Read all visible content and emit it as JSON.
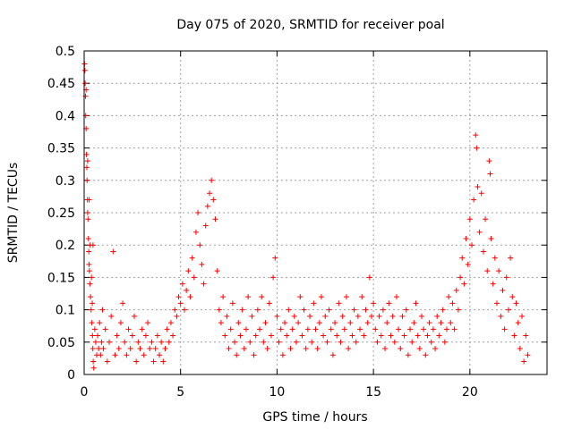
{
  "chart_data": {
    "type": "scatter",
    "title": "Day 075 of 2020, SRMTID for receiver poal",
    "xlabel": "GPS time / hours",
    "ylabel": "SRMTID / TECUs",
    "xlim": [
      0,
      24
    ],
    "ylim": [
      0,
      0.5
    ],
    "xticks": [
      0,
      5,
      10,
      15,
      20
    ],
    "xtick_labels": [
      "0",
      "5",
      "10",
      "15",
      "20"
    ],
    "yticks": [
      0,
      0.05,
      0.1,
      0.15,
      0.2,
      0.25,
      0.3,
      0.35,
      0.4,
      0.45,
      0.5
    ],
    "ytick_labels": [
      "0",
      "0.05",
      "0.1",
      "0.15",
      "0.2",
      "0.25",
      "0.3",
      "0.35",
      "0.4",
      "0.45",
      "0.5"
    ],
    "grid": true,
    "marker": "+",
    "color": "#ff0000",
    "series": [
      {
        "name": "SRMTID",
        "points": [
          [
            0.02,
            0.48
          ],
          [
            0.04,
            0.47
          ],
          [
            0.05,
            0.45
          ],
          [
            0.07,
            0.43
          ],
          [
            0.08,
            0.4
          ],
          [
            0.1,
            0.38
          ],
          [
            0.12,
            0.34
          ],
          [
            0.14,
            0.32
          ],
          [
            0.15,
            0.3
          ],
          [
            0.17,
            0.27
          ],
          [
            0.18,
            0.25
          ],
          [
            0.2,
            0.24
          ],
          [
            0.22,
            0.21
          ],
          [
            0.24,
            0.19
          ],
          [
            0.25,
            0.17
          ],
          [
            0.27,
            0.16
          ],
          [
            0.3,
            0.14
          ],
          [
            0.33,
            0.12
          ],
          [
            0.36,
            0.1
          ],
          [
            0.4,
            0.08
          ],
          [
            0.43,
            0.06
          ],
          [
            0.45,
            0.04
          ],
          [
            0.47,
            0.02
          ],
          [
            0.5,
            0.01
          ],
          [
            0.1,
            0.44
          ],
          [
            0.18,
            0.33
          ],
          [
            0.26,
            0.27
          ],
          [
            0.31,
            0.2
          ],
          [
            0.38,
            0.15
          ],
          [
            0.42,
            0.11
          ],
          [
            0.46,
            0.2
          ],
          [
            0.55,
            0.07
          ],
          [
            0.6,
            0.05
          ],
          [
            0.65,
            0.03
          ],
          [
            0.7,
            0.06
          ],
          [
            0.75,
            0.04
          ],
          [
            0.8,
            0.08
          ],
          [
            0.85,
            0.03
          ],
          [
            0.9,
            0.05
          ],
          [
            0.95,
            0.1
          ],
          [
            1.0,
            0.04
          ],
          [
            1.1,
            0.07
          ],
          [
            1.2,
            0.02
          ],
          [
            1.3,
            0.05
          ],
          [
            1.4,
            0.09
          ],
          [
            1.5,
            0.19
          ],
          [
            1.6,
            0.03
          ],
          [
            1.7,
            0.06
          ],
          [
            1.8,
            0.04
          ],
          [
            1.9,
            0.08
          ],
          [
            2.0,
            0.11
          ],
          [
            2.1,
            0.05
          ],
          [
            2.2,
            0.03
          ],
          [
            2.3,
            0.07
          ],
          [
            2.4,
            0.04
          ],
          [
            2.5,
            0.06
          ],
          [
            2.6,
            0.09
          ],
          [
            2.7,
            0.02
          ],
          [
            2.8,
            0.05
          ],
          [
            2.9,
            0.04
          ],
          [
            3.0,
            0.07
          ],
          [
            3.1,
            0.03
          ],
          [
            3.2,
            0.06
          ],
          [
            3.3,
            0.08
          ],
          [
            3.4,
            0.04
          ],
          [
            3.5,
            0.05
          ],
          [
            3.6,
            0.02
          ],
          [
            3.7,
            0.04
          ],
          [
            3.8,
            0.06
          ],
          [
            3.9,
            0.03
          ],
          [
            4.0,
            0.05
          ],
          [
            4.1,
            0.02
          ],
          [
            4.2,
            0.04
          ],
          [
            4.3,
            0.07
          ],
          [
            4.4,
            0.05
          ],
          [
            4.5,
            0.08
          ],
          [
            4.6,
            0.06
          ],
          [
            4.7,
            0.1
          ],
          [
            4.8,
            0.09
          ],
          [
            4.9,
            0.12
          ],
          [
            5.0,
            0.11
          ],
          [
            5.1,
            0.14
          ],
          [
            5.2,
            0.1
          ],
          [
            5.3,
            0.13
          ],
          [
            5.4,
            0.16
          ],
          [
            5.5,
            0.12
          ],
          [
            5.6,
            0.18
          ],
          [
            5.7,
            0.15
          ],
          [
            5.8,
            0.22
          ],
          [
            5.9,
            0.25
          ],
          [
            6.0,
            0.2
          ],
          [
            6.1,
            0.17
          ],
          [
            6.2,
            0.14
          ],
          [
            6.3,
            0.23
          ],
          [
            6.4,
            0.26
          ],
          [
            6.5,
            0.28
          ],
          [
            6.6,
            0.3
          ],
          [
            6.7,
            0.27
          ],
          [
            6.8,
            0.24
          ],
          [
            6.9,
            0.16
          ],
          [
            7.0,
            0.1
          ],
          [
            7.1,
            0.08
          ],
          [
            7.2,
            0.12
          ],
          [
            7.3,
            0.06
          ],
          [
            7.4,
            0.09
          ],
          [
            7.5,
            0.04
          ],
          [
            7.6,
            0.07
          ],
          [
            7.7,
            0.11
          ],
          [
            7.8,
            0.05
          ],
          [
            7.9,
            0.03
          ],
          [
            8.0,
            0.08
          ],
          [
            8.1,
            0.06
          ],
          [
            8.2,
            0.1
          ],
          [
            8.3,
            0.04
          ],
          [
            8.4,
            0.07
          ],
          [
            8.5,
            0.12
          ],
          [
            8.6,
            0.05
          ],
          [
            8.7,
            0.09
          ],
          [
            8.8,
            0.03
          ],
          [
            8.9,
            0.06
          ],
          [
            9.0,
            0.1
          ],
          [
            9.1,
            0.07
          ],
          [
            9.2,
            0.12
          ],
          [
            9.3,
            0.05
          ],
          [
            9.4,
            0.08
          ],
          [
            9.5,
            0.04
          ],
          [
            9.6,
            0.11
          ],
          [
            9.7,
            0.06
          ],
          [
            9.8,
            0.15
          ],
          [
            9.9,
            0.18
          ],
          [
            10.0,
            0.09
          ],
          [
            10.1,
            0.05
          ],
          [
            10.2,
            0.07
          ],
          [
            10.3,
            0.03
          ],
          [
            10.4,
            0.08
          ],
          [
            10.5,
            0.06
          ],
          [
            10.6,
            0.1
          ],
          [
            10.7,
            0.04
          ],
          [
            10.8,
            0.07
          ],
          [
            10.9,
            0.09
          ],
          [
            11.0,
            0.05
          ],
          [
            11.1,
            0.08
          ],
          [
            11.2,
            0.12
          ],
          [
            11.3,
            0.06
          ],
          [
            11.4,
            0.1
          ],
          [
            11.5,
            0.04
          ],
          [
            11.6,
            0.07
          ],
          [
            11.7,
            0.09
          ],
          [
            11.8,
            0.05
          ],
          [
            11.9,
            0.11
          ],
          [
            12.0,
            0.07
          ],
          [
            12.1,
            0.04
          ],
          [
            12.2,
            0.08
          ],
          [
            12.3,
            0.12
          ],
          [
            12.4,
            0.06
          ],
          [
            12.5,
            0.09
          ],
          [
            12.6,
            0.05
          ],
          [
            12.7,
            0.1
          ],
          [
            12.8,
            0.07
          ],
          [
            12.9,
            0.03
          ],
          [
            13.0,
            0.08
          ],
          [
            13.1,
            0.06
          ],
          [
            13.2,
            0.11
          ],
          [
            13.3,
            0.05
          ],
          [
            13.4,
            0.09
          ],
          [
            13.5,
            0.07
          ],
          [
            13.6,
            0.12
          ],
          [
            13.7,
            0.04
          ],
          [
            13.8,
            0.08
          ],
          [
            13.9,
            0.06
          ],
          [
            14.0,
            0.1
          ],
          [
            14.1,
            0.05
          ],
          [
            14.2,
            0.09
          ],
          [
            14.3,
            0.07
          ],
          [
            14.4,
            0.12
          ],
          [
            14.5,
            0.06
          ],
          [
            14.6,
            0.1
          ],
          [
            14.7,
            0.08
          ],
          [
            14.8,
            0.15
          ],
          [
            14.9,
            0.09
          ],
          [
            15.0,
            0.11
          ],
          [
            15.1,
            0.07
          ],
          [
            15.2,
            0.05
          ],
          [
            15.3,
            0.09
          ],
          [
            15.4,
            0.06
          ],
          [
            15.5,
            0.1
          ],
          [
            15.6,
            0.04
          ],
          [
            15.7,
            0.08
          ],
          [
            15.8,
            0.11
          ],
          [
            15.9,
            0.06
          ],
          [
            16.0,
            0.09
          ],
          [
            16.1,
            0.05
          ],
          [
            16.2,
            0.12
          ],
          [
            16.3,
            0.07
          ],
          [
            16.4,
            0.04
          ],
          [
            16.5,
            0.09
          ],
          [
            16.6,
            0.06
          ],
          [
            16.7,
            0.1
          ],
          [
            16.8,
            0.03
          ],
          [
            16.9,
            0.07
          ],
          [
            17.0,
            0.05
          ],
          [
            17.1,
            0.08
          ],
          [
            17.2,
            0.11
          ],
          [
            17.3,
            0.06
          ],
          [
            17.4,
            0.04
          ],
          [
            17.5,
            0.09
          ],
          [
            17.6,
            0.07
          ],
          [
            17.7,
            0.03
          ],
          [
            17.8,
            0.06
          ],
          [
            17.9,
            0.08
          ],
          [
            18.0,
            0.05
          ],
          [
            18.1,
            0.07
          ],
          [
            18.2,
            0.04
          ],
          [
            18.3,
            0.09
          ],
          [
            18.4,
            0.06
          ],
          [
            18.5,
            0.08
          ],
          [
            18.6,
            0.1
          ],
          [
            18.7,
            0.05
          ],
          [
            18.8,
            0.07
          ],
          [
            18.9,
            0.12
          ],
          [
            19.0,
            0.08
          ],
          [
            19.1,
            0.11
          ],
          [
            19.2,
            0.07
          ],
          [
            19.3,
            0.13
          ],
          [
            19.4,
            0.1
          ],
          [
            19.5,
            0.15
          ],
          [
            19.6,
            0.18
          ],
          [
            19.7,
            0.14
          ],
          [
            19.8,
            0.21
          ],
          [
            19.9,
            0.17
          ],
          [
            20.0,
            0.24
          ],
          [
            20.1,
            0.2
          ],
          [
            20.2,
            0.27
          ],
          [
            20.3,
            0.37
          ],
          [
            20.35,
            0.35
          ],
          [
            20.4,
            0.29
          ],
          [
            20.5,
            0.22
          ],
          [
            20.6,
            0.28
          ],
          [
            20.7,
            0.19
          ],
          [
            20.8,
            0.24
          ],
          [
            20.9,
            0.16
          ],
          [
            21.0,
            0.33
          ],
          [
            21.05,
            0.31
          ],
          [
            21.1,
            0.21
          ],
          [
            21.2,
            0.14
          ],
          [
            21.3,
            0.18
          ],
          [
            21.4,
            0.11
          ],
          [
            21.5,
            0.16
          ],
          [
            21.6,
            0.09
          ],
          [
            21.7,
            0.13
          ],
          [
            21.8,
            0.07
          ],
          [
            21.9,
            0.15
          ],
          [
            22.0,
            0.1
          ],
          [
            22.1,
            0.18
          ],
          [
            22.2,
            0.12
          ],
          [
            22.3,
            0.06
          ],
          [
            22.4,
            0.11
          ],
          [
            22.5,
            0.08
          ],
          [
            22.6,
            0.04
          ],
          [
            22.7,
            0.09
          ],
          [
            22.8,
            0.02
          ],
          [
            22.9,
            0.06
          ],
          [
            23.0,
            0.03
          ]
        ]
      }
    ]
  }
}
